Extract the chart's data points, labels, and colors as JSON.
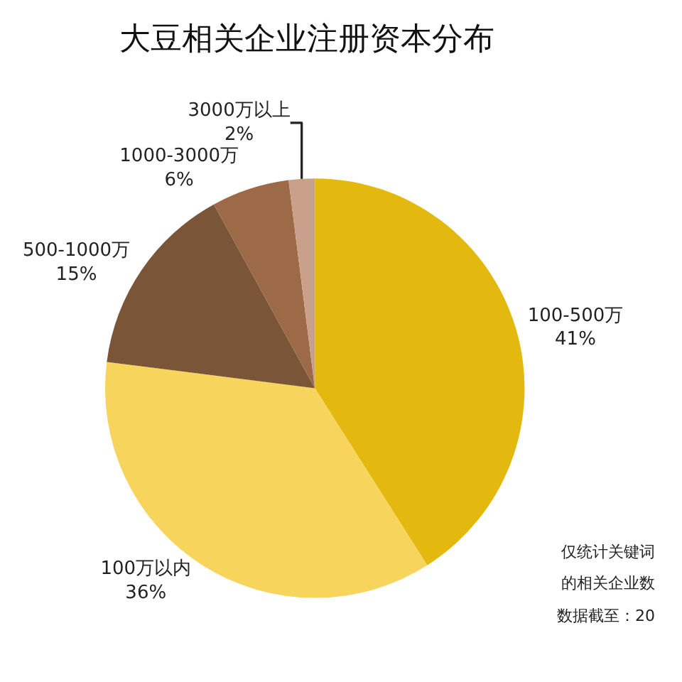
{
  "chart_data": {
    "type": "pie",
    "title": "大豆相关企业注册资本分布",
    "categories": [
      "100-500万",
      "100万以内",
      "500-1000万",
      "1000-3000万",
      "3000万以上"
    ],
    "values": [
      41,
      36,
      15,
      6,
      2
    ],
    "value_labels": [
      "41%",
      "36%",
      "15%",
      "6%",
      "2%"
    ],
    "colors": [
      "#e3b90f",
      "#f7d45c",
      "#7a5538",
      "#9c6a47",
      "#c9a08a"
    ],
    "annotations": [
      "仅统计关键词",
      "的相关企业数",
      "数据截至：20"
    ]
  }
}
